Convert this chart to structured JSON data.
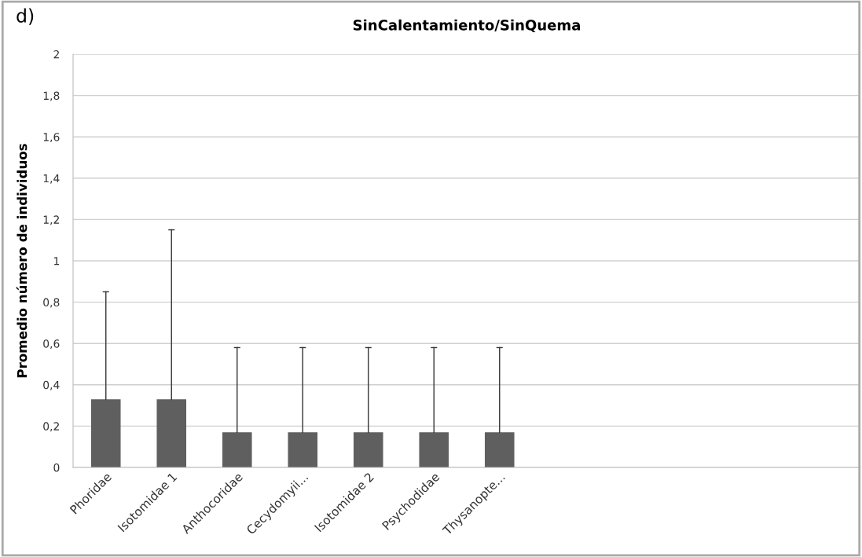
{
  "chart_data": {
    "type": "bar",
    "title": "SinCalentamiento/SinQuema",
    "ylabel": "Promedio número de individuos",
    "annotations": [
      "d)"
    ],
    "categories": [
      "Phoridae",
      "Isotomidae 1",
      "Anthocoridae",
      "Cecydomyii...",
      "Isotomidae 2",
      "Psychodidae",
      "Thysanopte...",
      null,
      null,
      null,
      null,
      null
    ],
    "values": [
      0.33,
      0.33,
      0.17,
      0.17,
      0.17,
      0.17,
      0.17,
      null,
      null,
      null,
      null,
      null
    ],
    "errors": [
      [
        0.33,
        0.85
      ],
      [
        0.33,
        1.15
      ],
      [
        0.17,
        0.58
      ],
      [
        0.17,
        0.58
      ],
      [
        0.17,
        0.58
      ],
      [
        0.17,
        0.58
      ],
      [
        0.17,
        0.58
      ],
      null,
      null,
      null,
      null,
      null
    ],
    "color": "#5f5f5f",
    "ylim": [
      0,
      2
    ],
    "yticks": [
      0,
      {
        "value": 0.2,
        "label": "0,2"
      },
      {
        "value": 0.4,
        "label": "0,4"
      },
      {
        "value": 0.6,
        "label": "0,6"
      },
      {
        "value": 0.8,
        "label": "0,8"
      },
      1,
      {
        "value": 1.2,
        "label": "1,2"
      },
      {
        "value": 1.4,
        "label": "1,4"
      },
      {
        "value": 1.6,
        "label": "1,6"
      },
      {
        "value": 1.8,
        "label": "1,8"
      },
      2
    ],
    "grid": "y",
    "legend": false
  }
}
